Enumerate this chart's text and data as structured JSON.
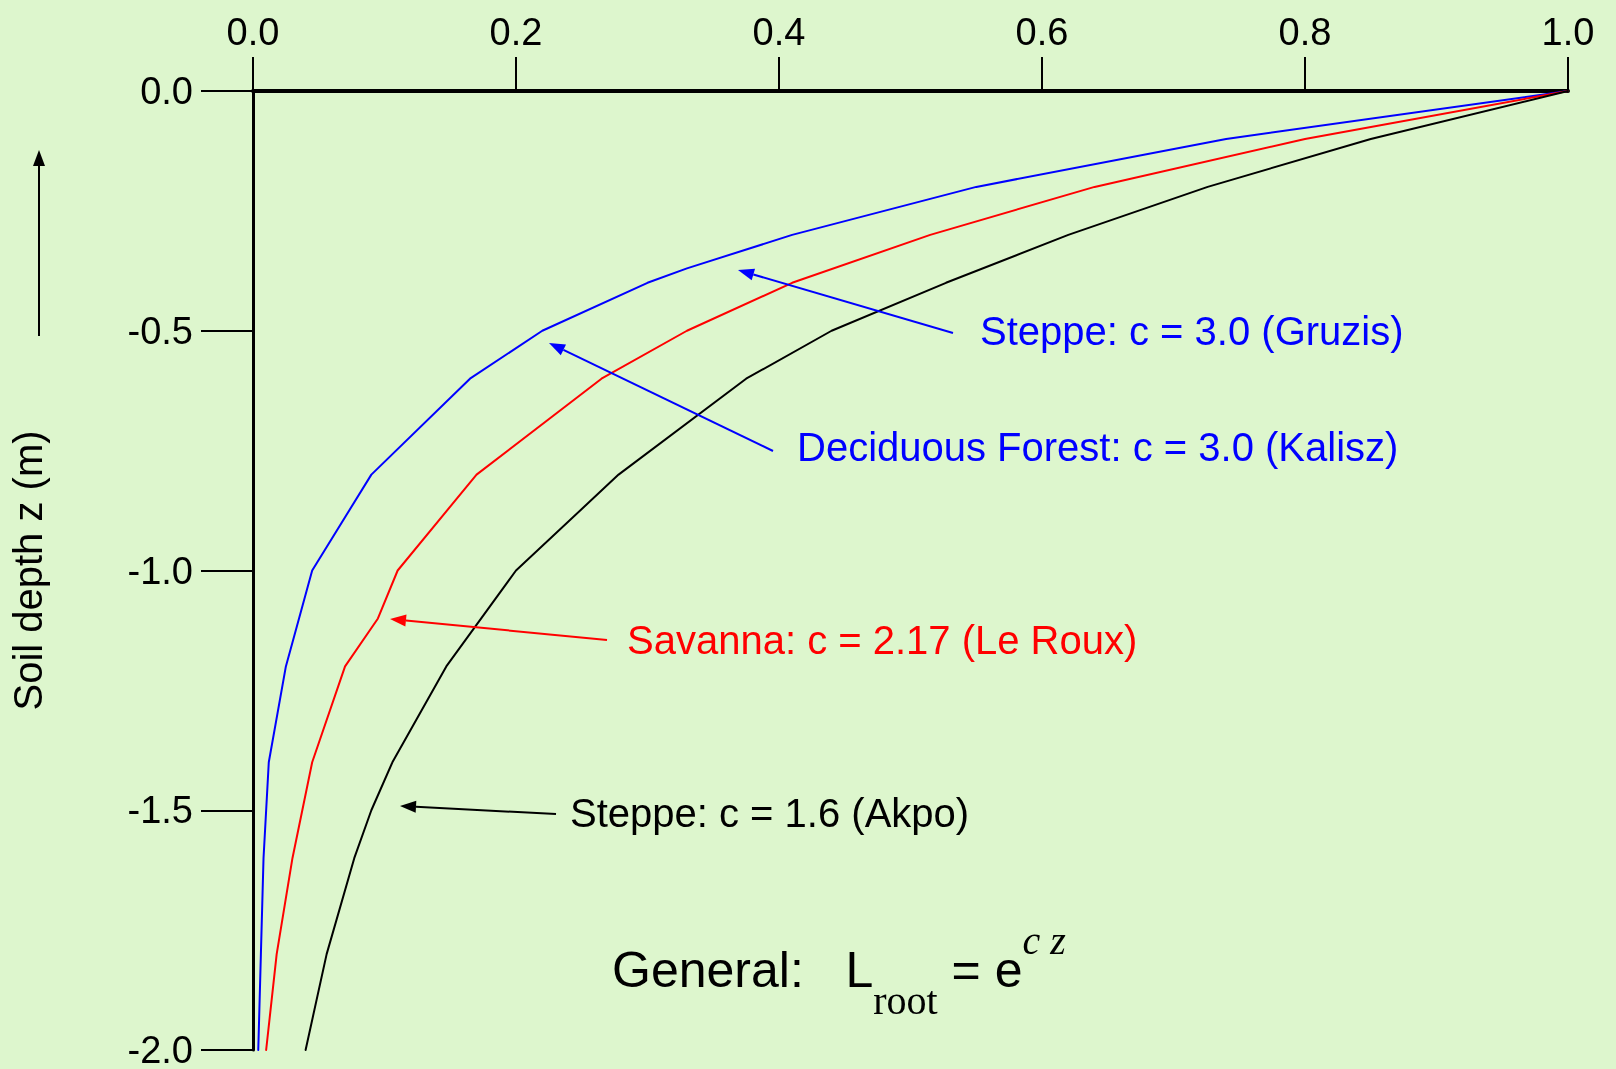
{
  "chart_data": {
    "type": "line",
    "ylabel": "Soil depth z (m)",
    "xlim": [
      0,
      1
    ],
    "xticks": [
      {
        "value": 0,
        "label": "0.0"
      },
      0.2,
      0.4,
      0.6,
      0.8,
      {
        "value": 1,
        "label": "1.0"
      }
    ],
    "ylim": [
      -2,
      0
    ],
    "yticks": [
      {
        "value": -2,
        "label": "-2.0"
      },
      -1.5,
      {
        "value": -1,
        "label": "-1.0"
      },
      -0.5,
      {
        "value": 0,
        "label": "0.0"
      }
    ],
    "series": [
      {
        "color": "#0000ff",
        "x": [
          1,
          0.74,
          0.55,
          0.41,
          0.33,
          0.3,
          0.22,
          0.165,
          0.09,
          0.045,
          0.025,
          0.012,
          0.008,
          0.006,
          0.004
        ],
        "values": [
          0,
          -0.1,
          -0.2,
          -0.3,
          -0.37,
          -0.4,
          -0.5,
          -0.6,
          -0.8,
          -1.0,
          -1.2,
          -1.4,
          -1.6,
          -1.8,
          -2.0
        ]
      },
      {
        "color": "#ff0000",
        "x": [
          1,
          0.8,
          0.64,
          0.515,
          0.41,
          0.33,
          0.265,
          0.17,
          0.11,
          0.095,
          0.07,
          0.045,
          0.03,
          0.018,
          0.01
        ],
        "values": [
          0,
          -0.1,
          -0.2,
          -0.3,
          -0.4,
          -0.5,
          -0.6,
          -0.8,
          -1.0,
          -1.1,
          -1.2,
          -1.4,
          -1.6,
          -1.8,
          -2.0
        ]
      },
      {
        "color": "#000000",
        "x": [
          1,
          0.85,
          0.726,
          0.62,
          0.527,
          0.44,
          0.375,
          0.278,
          0.2,
          0.147,
          0.106,
          0.09,
          0.077,
          0.056,
          0.04
        ],
        "values": [
          0,
          -0.1,
          -0.2,
          -0.3,
          -0.4,
          -0.5,
          -0.6,
          -0.8,
          -1.0,
          -1.2,
          -1.4,
          -1.5,
          -1.6,
          -1.8,
          -2.0
        ]
      }
    ],
    "annotations": [
      "Steppe: c = 3.0 (Gruzis)",
      "Deciduous Forest: c = 3.0 (Kalisz)",
      "Savanna: c = 2.17 (Le Roux)",
      "Steppe: c = 1.6 (Akpo)",
      "General:   L$_{root}$ = e$^{c z}$"
    ],
    "marker": "none",
    "line_style": "solid",
    "grid": false
  }
}
